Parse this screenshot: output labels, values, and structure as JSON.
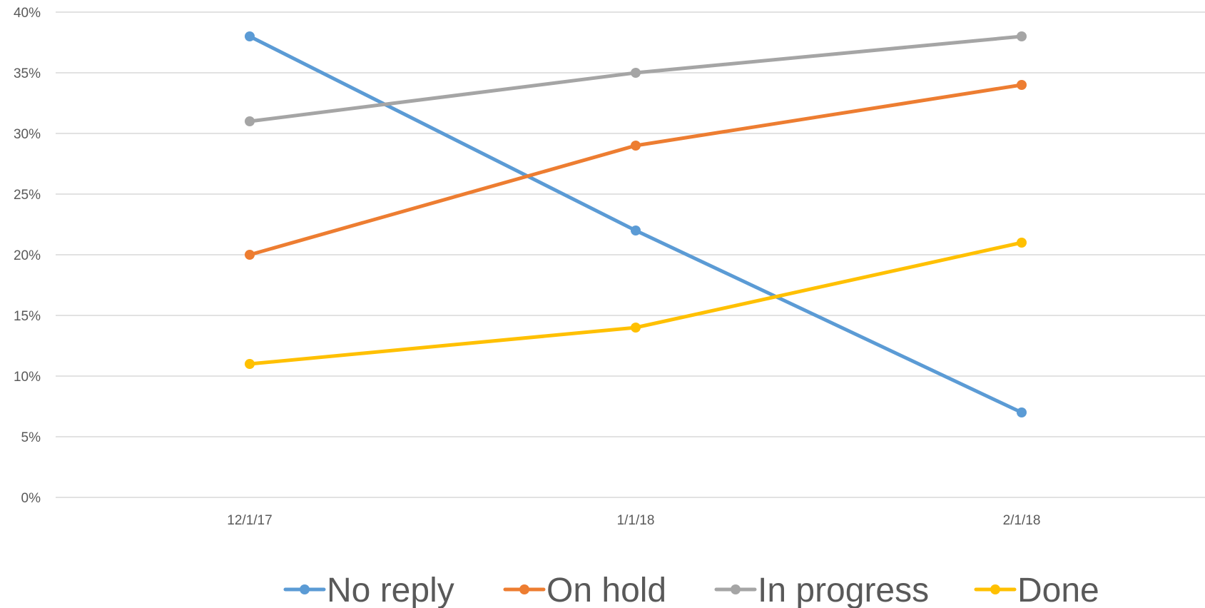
{
  "chart_data": {
    "type": "line",
    "title": "",
    "xlabel": "",
    "ylabel": "",
    "categories": [
      "12/1/17",
      "1/1/18",
      "2/1/18"
    ],
    "ylim": [
      0,
      40
    ],
    "yticks": [
      0,
      5,
      10,
      15,
      20,
      25,
      30,
      35,
      40
    ],
    "ytick_labels": [
      "0%",
      "5%",
      "10%",
      "15%",
      "20%",
      "25%",
      "30%",
      "35%",
      "40%"
    ],
    "grid": true,
    "legend": "bottom",
    "series": [
      {
        "name": "No reply",
        "color": "#5B9BD5",
        "values": [
          38,
          22,
          7
        ]
      },
      {
        "name": "On hold",
        "color": "#ED7D31",
        "values": [
          20,
          29,
          34
        ]
      },
      {
        "name": "In progress",
        "color": "#A5A5A5",
        "values": [
          31,
          35,
          38
        ]
      },
      {
        "name": "Done",
        "color": "#FFC000",
        "values": [
          11,
          14,
          21
        ]
      }
    ]
  }
}
